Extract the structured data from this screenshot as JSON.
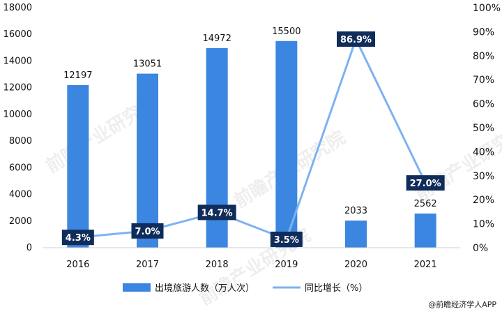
{
  "colors": {
    "bar": "#3B86E0",
    "line": "#7EB2F0",
    "label_box": "#0F2C5A",
    "label_text": "#FFFFFF",
    "axis_text": "#111111",
    "watermark": "#EEEEEE"
  },
  "watermark_text": "前瞻产业研究院",
  "credit": "@前瞻经济学人APP",
  "chart_data": {
    "type": "bar",
    "categories": [
      "2016",
      "2017",
      "2018",
      "2019",
      "2020",
      "2021"
    ],
    "series": [
      {
        "name": "出境旅游人数（万人次）",
        "type": "bar",
        "axis": "left",
        "values": [
          12197,
          13051,
          14972,
          15500,
          2033,
          2562
        ],
        "labels": [
          "12197",
          "13051",
          "14972",
          "15500",
          "2033",
          "2562"
        ]
      },
      {
        "name": "同比增长（%）",
        "type": "line",
        "axis": "right",
        "values": [
          4.3,
          7.0,
          14.7,
          3.5,
          86.9,
          27.0
        ],
        "labels": [
          "4.3%",
          "7.0%",
          "14.7%",
          "3.5%",
          "86.9%",
          "27.0%"
        ]
      }
    ],
    "y_left": {
      "min": 0,
      "max": 18000,
      "ticks": [
        "0",
        "2000",
        "4000",
        "6000",
        "8000",
        "10000",
        "12000",
        "14000",
        "16000",
        "18000"
      ]
    },
    "y_right": {
      "min": 0,
      "max": 100,
      "ticks": [
        "0%",
        "10%",
        "20%",
        "30%",
        "40%",
        "50%",
        "60%",
        "70%",
        "80%",
        "90%",
        "100%"
      ]
    },
    "grid": false,
    "legend_position": "bottom"
  }
}
